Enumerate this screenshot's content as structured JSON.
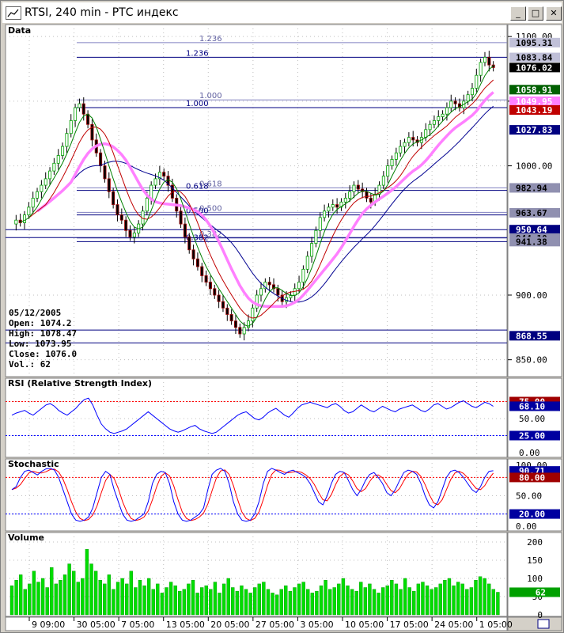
{
  "window": {
    "title": "RTSI, 240 min - РТС индекс",
    "min_icon": "minimize-icon",
    "max_icon": "maximize-icon",
    "close_icon": "close-icon"
  },
  "colors": {
    "up_candle": "#00a000",
    "down_candle": "#a00000",
    "ma_fast": "#008000",
    "ma_mid": "#c00000",
    "ma_slow": "#000090",
    "ma_thick": "#ff80ff",
    "fib_line": "#000080",
    "rsi_line": "#0000ff",
    "stoch_k": "#0000ff",
    "stoch_d": "#ff0000",
    "volume_bar": "#00dd00",
    "level_line": "#000080"
  },
  "chart_data": [
    {
      "type": "candlestick",
      "title": "Data",
      "ylim": [
        840,
        1105
      ],
      "yticks": [
        850,
        900,
        1000,
        1050,
        1100
      ],
      "xticks": [
        "9 09:00",
        "30 05:00",
        "7 05:00",
        "13 05:00",
        "20 05:00",
        "27 05:00",
        "3 05:00",
        "10 05:00",
        "17 05:00",
        "24 05:00",
        "1 05:00"
      ],
      "price_tags": [
        {
          "value": "1095.31",
          "bg": "#c0c0d8",
          "fg": "#000000"
        },
        {
          "value": "1083.84",
          "bg": "#c0c0d8",
          "fg": "#000000"
        },
        {
          "value": "1076.02",
          "bg": "#000000",
          "fg": "#ffffff"
        },
        {
          "value": "1058.91",
          "bg": "#006000",
          "fg": "#ffffff"
        },
        {
          "value": "1049.95",
          "bg": "#ff80ff",
          "fg": "#ffffff"
        },
        {
          "value": "1043.19",
          "bg": "#c00000",
          "fg": "#ffffff"
        },
        {
          "value": "1027.83",
          "bg": "#000080",
          "fg": "#ffffff"
        },
        {
          "value": "982.94",
          "bg": "#9090b0",
          "fg": "#000000"
        },
        {
          "value": "963.67",
          "bg": "#9090b0",
          "fg": "#000000"
        },
        {
          "value": "950.64",
          "bg": "#000080",
          "fg": "#ffffff"
        },
        {
          "value": "944.10",
          "bg": "#9090b0",
          "fg": "#000000"
        },
        {
          "value": "941.38",
          "bg": "#9090b0",
          "fg": "#000000"
        },
        {
          "value": "868.55",
          "bg": "#000080",
          "fg": "#ffffff"
        }
      ],
      "fib_levels": [
        {
          "label": "1.236",
          "value": 1095.3
        },
        {
          "label": "1.236",
          "value": 1084.0
        },
        {
          "label": "1.000",
          "value": 1051.0
        },
        {
          "label": "1.000",
          "value": 1045.0
        },
        {
          "label": "0.618",
          "value": 983.0
        },
        {
          "label": "0.618",
          "value": 981.0
        },
        {
          "label": "0.500",
          "value": 964.0
        },
        {
          "label": "0.500",
          "value": 962.0
        },
        {
          "label": "0.382",
          "value": 944.1
        },
        {
          "label": "0.382",
          "value": 941.4
        }
      ],
      "level_lines": [
        950.64,
        944.5,
        873.0,
        863.0
      ],
      "info_box": {
        "date": "05/12/2005",
        "open": "Open: 1074.2",
        "high": "High: 1078.47",
        "low": "Low: 1073.95",
        "close": "Close: 1076.0",
        "vol": "Vol.: 62"
      },
      "close_series": [
        955,
        958,
        956,
        962,
        968,
        975,
        980,
        985,
        990,
        996,
        1002,
        1008,
        1015,
        1025,
        1035,
        1045,
        1048,
        1040,
        1032,
        1020,
        1010,
        1000,
        990,
        980,
        970,
        962,
        958,
        950,
        945,
        948,
        955,
        965,
        975,
        985,
        990,
        995,
        992,
        985,
        975,
        965,
        955,
        945,
        935,
        928,
        922,
        915,
        910,
        905,
        900,
        895,
        890,
        885,
        880,
        875,
        870,
        875,
        880,
        890,
        900,
        905,
        910,
        908,
        905,
        900,
        895,
        898,
        900,
        905,
        910,
        920,
        930,
        940,
        950,
        960,
        965,
        968,
        970,
        968,
        972,
        975,
        980,
        985,
        982,
        980,
        975,
        972,
        978,
        985,
        992,
        1000,
        1005,
        1010,
        1015,
        1018,
        1022,
        1020,
        1018,
        1022,
        1028,
        1032,
        1035,
        1038,
        1040,
        1045,
        1050,
        1048,
        1045,
        1050,
        1055,
        1060,
        1070,
        1080,
        1084,
        1078,
        1076
      ]
    },
    {
      "type": "line",
      "title": "RSI (Relative Strength Index)",
      "ylim": [
        0,
        100
      ],
      "tick_labels": [
        "75.00",
        "50.00",
        "25.00",
        "0.00"
      ],
      "tags": [
        {
          "value": "75.00",
          "bg": "#a00000"
        },
        {
          "value": "68.10",
          "bg": "#0000a0"
        },
        {
          "value": "25.00",
          "bg": "#0000a0"
        }
      ],
      "values": [
        55,
        58,
        60,
        62,
        58,
        55,
        60,
        65,
        70,
        72,
        68,
        62,
        58,
        55,
        60,
        65,
        72,
        78,
        80,
        70,
        55,
        42,
        35,
        30,
        28,
        30,
        32,
        35,
        40,
        45,
        50,
        55,
        60,
        55,
        50,
        45,
        40,
        35,
        32,
        30,
        32,
        35,
        38,
        40,
        35,
        32,
        30,
        28,
        30,
        35,
        40,
        45,
        50,
        55,
        58,
        60,
        55,
        50,
        48,
        52,
        58,
        62,
        65,
        60,
        55,
        52,
        58,
        65,
        70,
        72,
        74,
        72,
        70,
        68,
        66,
        70,
        72,
        68,
        62,
        58,
        60,
        65,
        70,
        66,
        62,
        60,
        64,
        68,
        65,
        62,
        60,
        64,
        66,
        68,
        70,
        66,
        62,
        60,
        64,
        70,
        72,
        68,
        64,
        66,
        70,
        74,
        76,
        72,
        68,
        66,
        70,
        74,
        72,
        68
      ]
    },
    {
      "type": "line",
      "title": "Stochastic",
      "ylim": [
        0,
        100
      ],
      "tick_labels": [
        "100.00",
        "50.00",
        "0.00"
      ],
      "tags": [
        {
          "value": "90.71",
          "bg": "#0000a0"
        },
        {
          "value": "80.00",
          "bg": "#a00000"
        },
        {
          "value": "20.00",
          "bg": "#0000a0"
        }
      ],
      "k_values": [
        60,
        65,
        80,
        90,
        92,
        88,
        84,
        90,
        94,
        95,
        92,
        80,
        60,
        40,
        20,
        10,
        8,
        10,
        15,
        30,
        55,
        80,
        90,
        85,
        60,
        40,
        20,
        10,
        8,
        10,
        15,
        20,
        40,
        70,
        85,
        90,
        88,
        70,
        40,
        20,
        10,
        8,
        10,
        15,
        20,
        30,
        60,
        85,
        92,
        95,
        90,
        70,
        40,
        20,
        10,
        8,
        10,
        20,
        40,
        70,
        90,
        95,
        92,
        88,
        85,
        90,
        92,
        88,
        85,
        80,
        70,
        55,
        40,
        35,
        50,
        70,
        85,
        90,
        88,
        75,
        60,
        50,
        60,
        75,
        85,
        88,
        80,
        70,
        55,
        50,
        60,
        75,
        88,
        92,
        90,
        85,
        70,
        50,
        35,
        30,
        40,
        60,
        80,
        90,
        92,
        88,
        80,
        70,
        60,
        55,
        65,
        80,
        90,
        91
      ]
    },
    {
      "type": "bar",
      "title": "Volume",
      "ylim": [
        0,
        200
      ],
      "tick_labels": [
        "200",
        "150",
        "100",
        "50",
        "0"
      ],
      "tags": [
        {
          "value": "62",
          "bg": "#00a000"
        }
      ],
      "values": [
        80,
        95,
        110,
        70,
        85,
        120,
        90,
        100,
        75,
        130,
        85,
        95,
        110,
        140,
        120,
        90,
        100,
        180,
        140,
        120,
        95,
        85,
        110,
        70,
        90,
        100,
        85,
        120,
        75,
        95,
        80,
        100,
        70,
        85,
        60,
        75,
        90,
        80,
        65,
        70,
        85,
        95,
        60,
        75,
        80,
        70,
        90,
        60,
        85,
        100,
        75,
        65,
        80,
        70,
        60,
        75,
        85,
        90,
        70,
        60,
        55,
        70,
        80,
        65,
        75,
        85,
        90,
        70,
        60,
        65,
        80,
        95,
        70,
        75,
        85,
        100,
        80,
        70,
        65,
        90,
        75,
        85,
        70,
        60,
        75,
        80,
        95,
        85,
        70,
        100,
        75,
        65,
        85,
        90,
        80,
        70,
        75,
        85,
        95,
        100,
        80,
        90,
        85,
        70,
        75,
        95,
        105,
        100,
        85,
        70,
        62
      ]
    }
  ]
}
